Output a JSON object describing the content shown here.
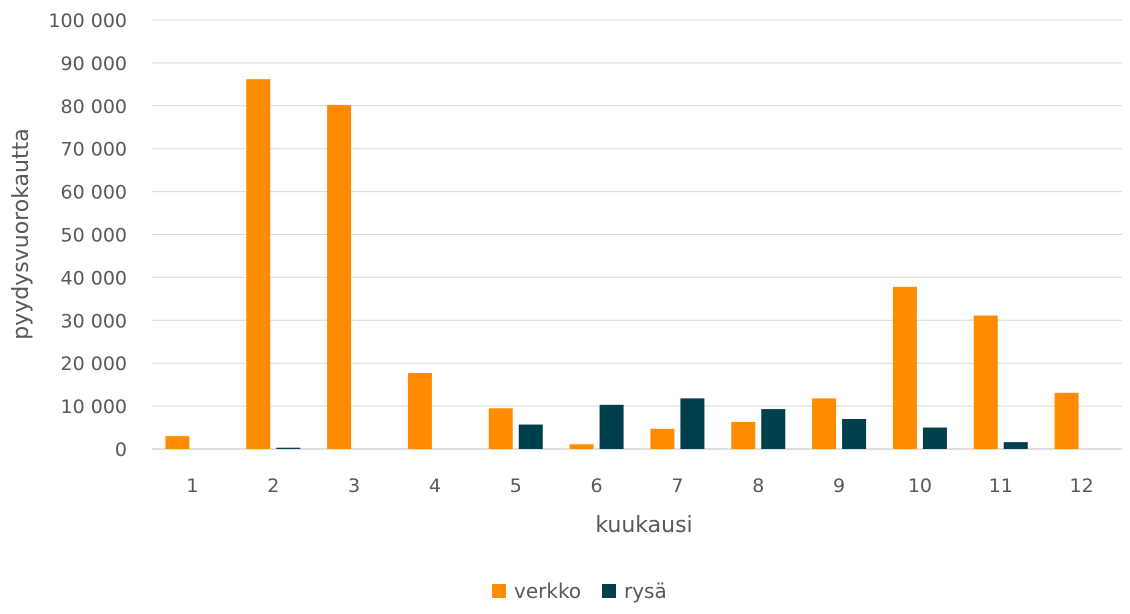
{
  "chart_data": {
    "type": "bar",
    "title": "",
    "xlabel": "kuukausi",
    "ylabel": "pyydysvuorokautta",
    "categories": [
      "1",
      "2",
      "3",
      "4",
      "5",
      "6",
      "7",
      "8",
      "9",
      "10",
      "11",
      "12"
    ],
    "ylim": [
      0,
      100000
    ],
    "yticks": [
      0,
      10000,
      20000,
      30000,
      40000,
      50000,
      60000,
      70000,
      80000,
      90000,
      100000
    ],
    "ytick_labels": [
      "0",
      "10 000",
      "20 000",
      "30 000",
      "40 000",
      "50 000",
      "60 000",
      "70 000",
      "80 000",
      "90 000",
      "100 000"
    ],
    "grid": true,
    "legend_position": "bottom",
    "series": [
      {
        "name": "verkko",
        "color": "#FF8C00",
        "values": [
          3000,
          86200,
          80200,
          17700,
          9500,
          1100,
          4700,
          6300,
          11800,
          37800,
          31100,
          13100
        ]
      },
      {
        "name": "rysä",
        "color": "#003F4E",
        "values": [
          0,
          300,
          0,
          0,
          5700,
          10300,
          11800,
          9300,
          7000,
          5000,
          1600,
          0
        ]
      }
    ]
  }
}
